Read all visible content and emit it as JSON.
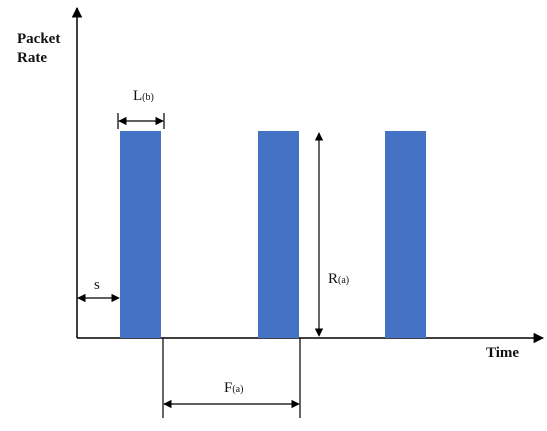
{
  "axes": {
    "y_title_line1": "Packet",
    "y_title_line2": "Rate",
    "x_title": "Time"
  },
  "pulses": {
    "count": 3,
    "color": "#4472c4"
  },
  "dimensions": {
    "pulse_width": {
      "main": "L",
      "sub": "(b)"
    },
    "start_offset": {
      "main": "s"
    },
    "amplitude": {
      "main": "R",
      "sub": "(a)"
    },
    "period": {
      "main": "F",
      "sub": "(a)"
    }
  }
}
